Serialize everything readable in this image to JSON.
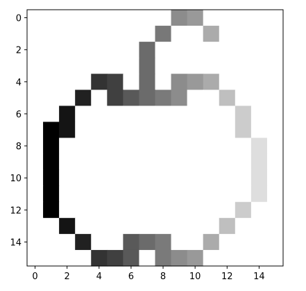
{
  "chart_data": {
    "type": "heatmap",
    "colormap": "gray",
    "value_range": [
      0,
      1
    ],
    "xlim": [
      -0.5,
      15.5
    ],
    "ylim": [
      15.5,
      -0.5
    ],
    "x_ticks": [
      0,
      2,
      4,
      6,
      8,
      10,
      12,
      14
    ],
    "x_tick_labels": [
      "0",
      "2",
      "4",
      "6",
      "8",
      "10",
      "12",
      "14"
    ],
    "y_ticks": [
      0,
      2,
      4,
      6,
      8,
      10,
      12,
      14
    ],
    "y_tick_labels": [
      "0",
      "2",
      "4",
      "6",
      "8",
      "10",
      "12",
      "14"
    ],
    "grid": false,
    "values": [
      [
        1,
        1,
        1,
        1,
        1,
        1,
        1,
        1,
        1,
        0.55,
        0.6,
        1,
        1,
        1,
        1,
        1
      ],
      [
        1,
        1,
        1,
        1,
        1,
        1,
        1,
        1,
        0.47,
        1,
        1,
        0.67,
        1,
        1,
        1,
        1
      ],
      [
        1,
        1,
        1,
        1,
        1,
        1,
        1,
        0.42,
        1,
        1,
        1,
        1,
        1,
        1,
        1,
        1
      ],
      [
        1,
        1,
        1,
        1,
        1,
        1,
        1,
        0.42,
        1,
        1,
        1,
        1,
        1,
        1,
        1,
        1
      ],
      [
        1,
        1,
        1,
        1,
        0.2,
        0.25,
        1,
        0.42,
        1,
        0.55,
        0.6,
        0.67,
        1,
        1,
        1,
        1
      ],
      [
        1,
        1,
        1,
        0.13,
        1,
        0.25,
        0.35,
        0.42,
        0.48,
        0.55,
        1,
        1,
        0.75,
        1,
        1,
        1
      ],
      [
        1,
        1,
        0.08,
        1,
        1,
        1,
        1,
        1,
        1,
        1,
        1,
        1,
        1,
        0.8,
        1,
        1
      ],
      [
        1,
        0.0,
        0.08,
        1,
        1,
        1,
        1,
        1,
        1,
        1,
        1,
        1,
        1,
        0.8,
        1,
        1
      ],
      [
        1,
        0.0,
        1,
        1,
        1,
        1,
        1,
        1,
        1,
        1,
        1,
        1,
        1,
        1,
        0.87,
        1
      ],
      [
        1,
        0.0,
        1,
        1,
        1,
        1,
        1,
        1,
        1,
        1,
        1,
        1,
        1,
        1,
        0.87,
        1
      ],
      [
        1,
        0.0,
        1,
        1,
        1,
        1,
        1,
        1,
        1,
        1,
        1,
        1,
        1,
        1,
        0.87,
        1
      ],
      [
        1,
        0.0,
        1,
        1,
        1,
        1,
        1,
        1,
        1,
        1,
        1,
        1,
        1,
        1,
        0.87,
        1
      ],
      [
        1,
        0.0,
        1,
        1,
        1,
        1,
        1,
        1,
        1,
        1,
        1,
        1,
        1,
        0.8,
        1,
        1
      ],
      [
        1,
        1,
        0.08,
        1,
        1,
        1,
        1,
        1,
        1,
        1,
        1,
        1,
        0.75,
        1,
        1,
        1
      ],
      [
        1,
        1,
        1,
        0.13,
        1,
        1,
        0.35,
        0.42,
        0.48,
        1,
        1,
        0.67,
        1,
        1,
        1,
        1
      ],
      [
        1,
        1,
        1,
        1,
        0.2,
        0.25,
        0.35,
        1,
        0.48,
        0.55,
        0.6,
        1,
        1,
        1,
        1,
        1
      ]
    ]
  }
}
